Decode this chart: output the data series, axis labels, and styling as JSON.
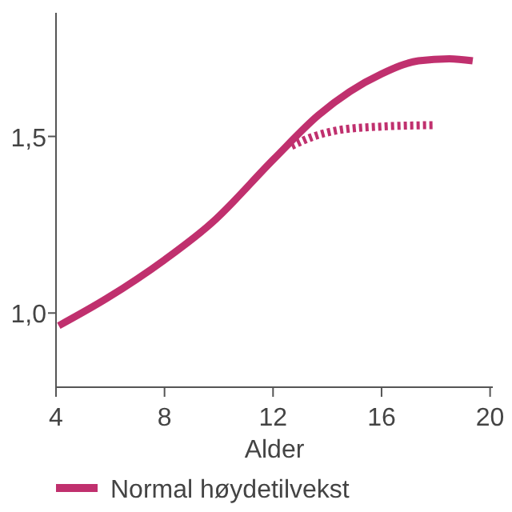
{
  "chart_data": {
    "type": "line",
    "xlabel": "Alder",
    "xlim": [
      4,
      20.1
    ],
    "xticks": [
      4,
      8,
      12,
      16,
      20
    ],
    "ylim": [
      0.79,
      1.85
    ],
    "yticks": [
      {
        "value": 1.0,
        "label": "1,0"
      },
      {
        "value": 1.5,
        "label": "1,5"
      }
    ],
    "legend": "bottom",
    "line_style": "solid",
    "series": [
      {
        "name": "Normal høydetilvekst",
        "color": "#c0306e",
        "x": [
          4.1,
          5.86,
          7.99,
          9.74,
          12.03,
          13.67,
          16.0,
          17.36,
          18.5,
          19.36
        ],
        "values": [
          0.964,
          1.041,
          1.15,
          1.255,
          1.436,
          1.56,
          1.677,
          1.714,
          1.72,
          1.714
        ]
      },
      {
        "color": "#c0306e",
        "line_style": "dotted",
        "x": [
          12.68,
          13.5,
          14.43,
          16,
          17.95
        ],
        "values": [
          1.473,
          1.5,
          1.518,
          1.528,
          1.532
        ]
      }
    ]
  }
}
